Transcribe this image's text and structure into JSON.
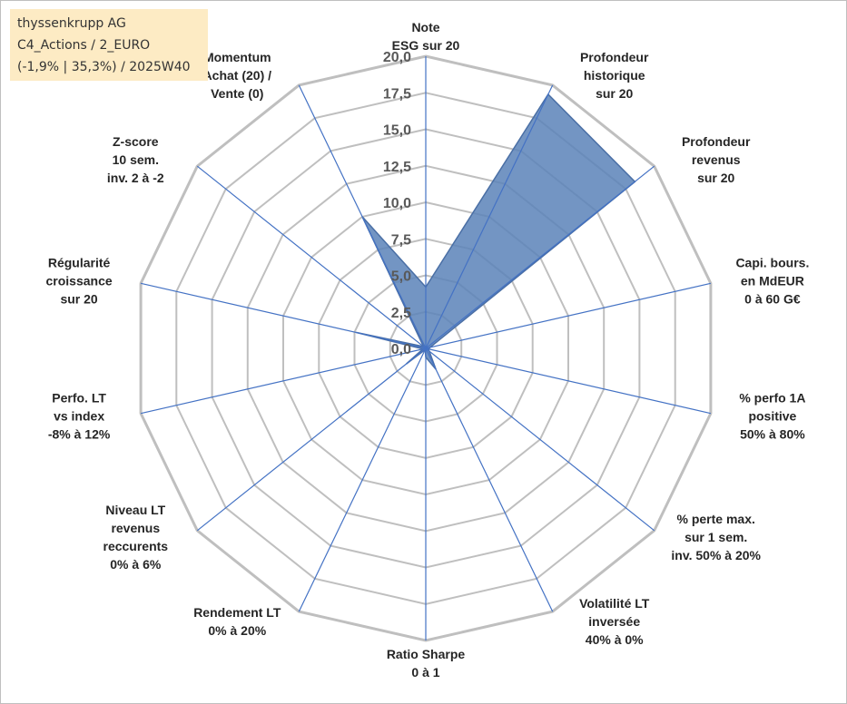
{
  "info_box": {
    "line1": "thyssenkrupp AG",
    "line2": "C4_Actions / 2_EURO",
    "line3": "(-1,9% | 35,3%) / 2025W40"
  },
  "chart_data": {
    "type": "radar",
    "title": "",
    "r_range": [
      0,
      20
    ],
    "grid": true,
    "ticks": [
      "0,0",
      "2,5",
      "5,0",
      "7,5",
      "10,0",
      "12,5",
      "15,0",
      "17,5",
      "20,0"
    ],
    "tick_values": [
      0,
      2.5,
      5,
      7.5,
      10,
      12.5,
      15,
      17.5,
      20
    ],
    "axes": [
      {
        "label": [
          "Note",
          "ESG sur 20"
        ],
        "value": 4.2
      },
      {
        "label": [
          "Profondeur",
          "historique",
          "sur 20"
        ],
        "value": 19.3
      },
      {
        "label": [
          "Profondeur",
          "revenus",
          "sur 20"
        ],
        "value": 18.3
      },
      {
        "label": [
          "Capi. bours.",
          "en MdEUR",
          "0 à 60 G€"
        ],
        "value": 0.3
      },
      {
        "label": [
          "% perfo 1A",
          "positive",
          "50% à 80%"
        ],
        "value": 0.2
      },
      {
        "label": [
          "% perte max.",
          "sur 1 sem.",
          "inv. 50% à 20%"
        ],
        "value": 0.3
      },
      {
        "label": [
          "Volatilité LT",
          "inversée",
          "40% à 0%"
        ],
        "value": 1.6
      },
      {
        "label": [
          "Ratio Sharpe",
          "0 à 1"
        ],
        "value": 0.6
      },
      {
        "label": [
          "Rendement LT",
          "0% à 20%"
        ],
        "value": 0.1
      },
      {
        "label": [
          "Niveau LT",
          "revenus",
          "reccurents",
          "0% à 6%"
        ],
        "value": 1.7
      },
      {
        "label": [
          "Perfo. LT",
          "vs index",
          "-8% à 12%"
        ],
        "value": 0.2
      },
      {
        "label": [
          "Régularité",
          "croissance",
          "sur 20"
        ],
        "value": 4.9
      },
      {
        "label": [
          "Z-score",
          "10 sem.",
          "inv. 2 à -2"
        ],
        "value": 0.2
      },
      {
        "label": [
          "Momentum",
          "Achat (20) /",
          "Vente (0)"
        ],
        "value": 10.0
      }
    ],
    "colors": {
      "fill": "#5b82b8",
      "stroke": "#4a6fa5",
      "spoke": "#4472c4",
      "grid": "#bfbfbf"
    }
  }
}
